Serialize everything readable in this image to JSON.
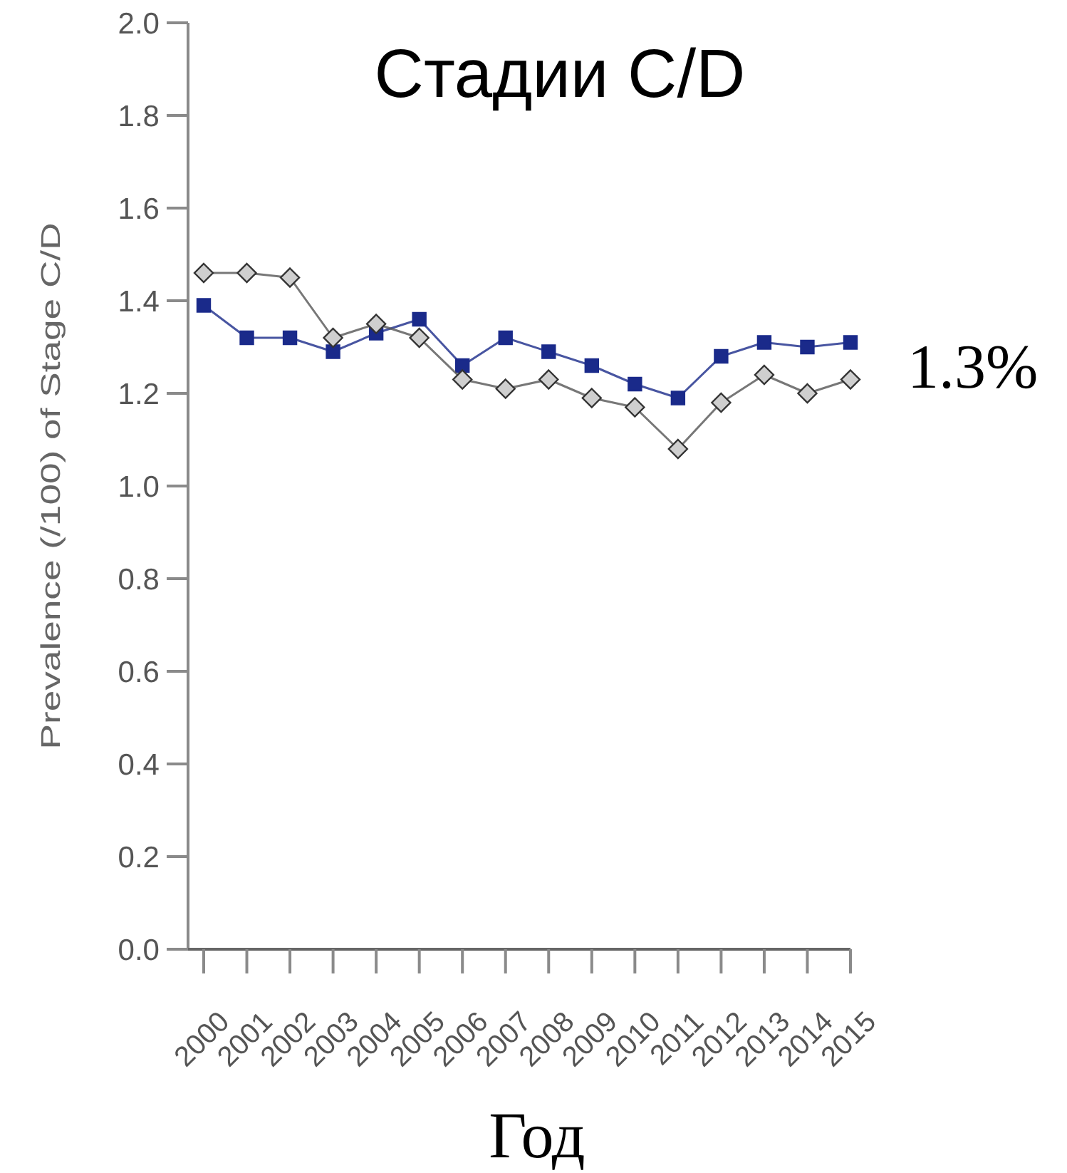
{
  "chart_data": {
    "type": "line",
    "title": "Стадии C/D",
    "xlabel": "Год",
    "ylabel": "Prevalence (/100) of Stage C/D",
    "categories": [
      "2000",
      "2001",
      "2002",
      "2003",
      "2004",
      "2005",
      "2006",
      "2007",
      "2008",
      "2009",
      "2010",
      "2011",
      "2012",
      "2013",
      "2014",
      "2015"
    ],
    "series": [
      {
        "color": "#1a2a8a",
        "marker": "square",
        "values": [
          1.39,
          1.32,
          1.32,
          1.29,
          1.33,
          1.36,
          1.26,
          1.32,
          1.29,
          1.26,
          1.22,
          1.19,
          1.28,
          1.31,
          1.3,
          1.31
        ]
      },
      {
        "color": "#555555",
        "marker": "diamond",
        "values": [
          1.46,
          1.46,
          1.45,
          1.32,
          1.35,
          1.32,
          1.23,
          1.21,
          1.23,
          1.19,
          1.17,
          1.08,
          1.18,
          1.24,
          1.2,
          1.23
        ]
      }
    ],
    "ylim": [
      0,
      2
    ],
    "yticks": [
      {
        "value": 0,
        "label": "0.0"
      },
      {
        "value": 0.2,
        "label": "0.2"
      },
      {
        "value": 0.4,
        "label": "0.4"
      },
      {
        "value": 0.6,
        "label": "0.6"
      },
      {
        "value": 0.8,
        "label": "0.8"
      },
      {
        "value": 1,
        "label": "1.0"
      },
      {
        "value": 1.2,
        "label": "1.2"
      },
      {
        "value": 1.4,
        "label": "1.4"
      },
      {
        "value": 1.6,
        "label": "1.6"
      },
      {
        "value": 1.8,
        "label": "1.8"
      },
      {
        "value": 2,
        "label": "2.0"
      }
    ],
    "annotations": [
      "1.3%"
    ]
  }
}
